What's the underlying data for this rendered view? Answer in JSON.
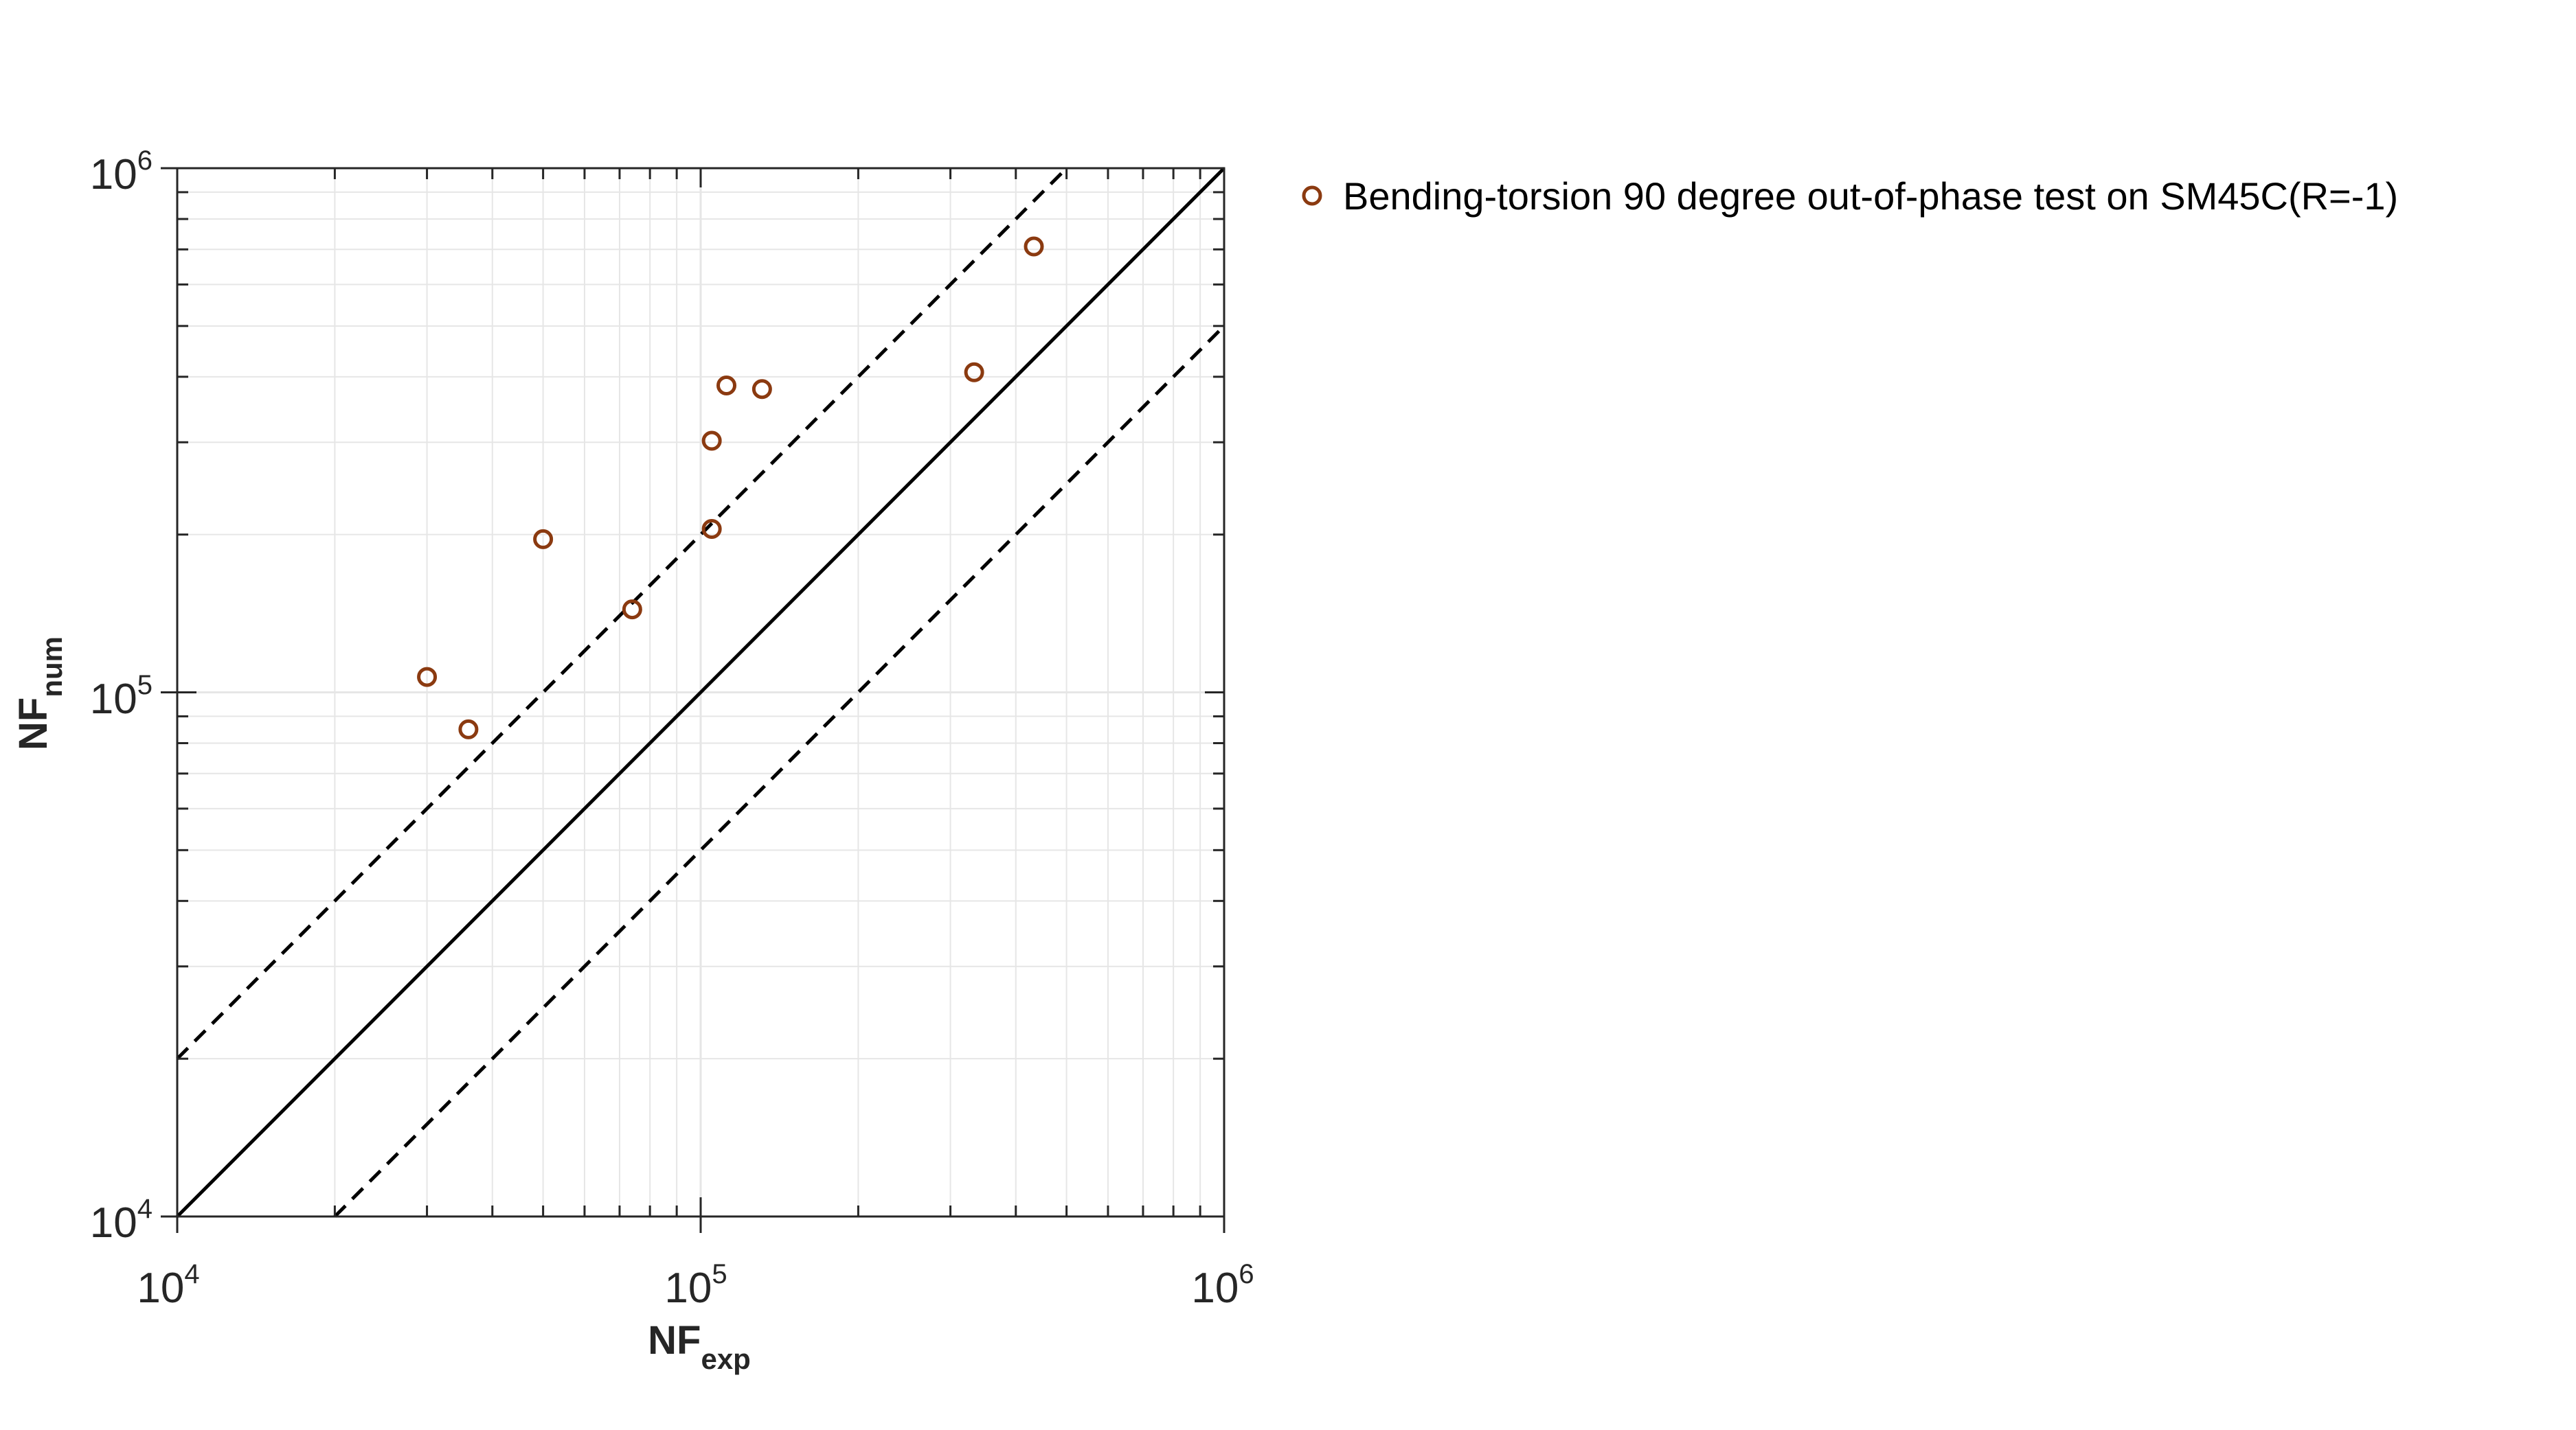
{
  "colors": {
    "marker": "#8B3A10",
    "reference_line": "#000000",
    "axis": "#262626",
    "grid": "#e6e6e6"
  },
  "chart_data": {
    "type": "scatter",
    "x_scale": "log",
    "y_scale": "log",
    "xlim": [
      10000,
      1000000
    ],
    "ylim": [
      10000,
      1000000
    ],
    "grid": true,
    "xlabel": {
      "base": "NF",
      "sub": "exp"
    },
    "ylabel": {
      "base": "NF",
      "sub": "num"
    },
    "x_ticks": [
      {
        "value": 10000,
        "base": "10",
        "exp": "4"
      },
      {
        "value": 100000,
        "base": "10",
        "exp": "5"
      },
      {
        "value": 1000000,
        "base": "10",
        "exp": "6"
      }
    ],
    "y_ticks": [
      {
        "value": 10000,
        "base": "10",
        "exp": "4"
      },
      {
        "value": 100000,
        "base": "10",
        "exp": "5"
      },
      {
        "value": 1000000,
        "base": "10",
        "exp": "6"
      }
    ],
    "legend_position": "outside-right-top",
    "series": [
      {
        "name": "Bending-torsion 90 degree out-of-phase test on SM45C(R=-1)",
        "marker": "circle-open",
        "points": [
          {
            "x": 30000,
            "y": 107000
          },
          {
            "x": 36000,
            "y": 85000
          },
          {
            "x": 50000,
            "y": 196000
          },
          {
            "x": 74000,
            "y": 144000
          },
          {
            "x": 105000,
            "y": 205000
          },
          {
            "x": 105000,
            "y": 302000
          },
          {
            "x": 112000,
            "y": 385000
          },
          {
            "x": 131000,
            "y": 379000
          },
          {
            "x": 333000,
            "y": 408000
          },
          {
            "x": 433000,
            "y": 709000
          }
        ]
      }
    ],
    "reference_lines": [
      {
        "kind": "solid",
        "factor": 1
      },
      {
        "kind": "dashed",
        "factor": 2
      },
      {
        "kind": "dashed",
        "factor": 0.5
      }
    ]
  }
}
